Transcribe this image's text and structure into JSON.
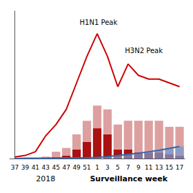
{
  "chart_data": {
    "type": "bar",
    "categories": [
      "37",
      "39",
      "41",
      "43",
      "45",
      "47",
      "49",
      "51",
      "1",
      "3",
      "5",
      "7",
      "9",
      "11",
      "13",
      "15",
      "17"
    ],
    "series": [
      {
        "type": "bar",
        "stacked": true,
        "color": "#aa1111",
        "values": [
          0,
          0,
          0,
          0,
          0.2,
          0.4,
          1.2,
          2.2,
          4.0,
          3.2,
          1.2,
          1.2,
          0.8,
          0.8,
          0.8,
          0.6,
          0.4
        ]
      },
      {
        "type": "bar",
        "stacked": true,
        "color": "#dda0a0",
        "values": [
          0,
          0.08,
          0.08,
          0.25,
          0.7,
          1.0,
          2.0,
          2.8,
          3.0,
          3.3,
          3.3,
          3.8,
          4.2,
          4.2,
          4.2,
          3.6,
          3.8
        ]
      },
      {
        "type": "bar",
        "color": "#7799cc",
        "values": [
          0,
          0.04,
          0.04,
          0.04,
          0.08,
          0.08,
          0.1,
          0.1,
          0.15,
          0.25,
          0.4,
          0.55,
          0.7,
          0.9,
          1.1,
          1.35,
          1.6
        ]
      },
      {
        "type": "line",
        "color": "#3366aa",
        "values": [
          0,
          0.04,
          0.04,
          0.04,
          0.08,
          0.08,
          0.1,
          0.1,
          0.15,
          0.25,
          0.4,
          0.55,
          0.7,
          0.9,
          1.1,
          1.35,
          1.6
        ]
      },
      {
        "type": "line",
        "color": "#cc0000",
        "values": [
          0.2,
          0.4,
          0.9,
          3.0,
          4.5,
          6.5,
          10.0,
          13.5,
          16.5,
          13.5,
          9.5,
          12.5,
          11.0,
          10.5,
          10.5,
          10.0,
          9.5
        ]
      }
    ],
    "ylim": [
      0,
      19.5
    ],
    "xlabel": "Surveillance week",
    "annotations": [
      {
        "text": "H1N1 Peak",
        "x": 6.3,
        "y": 17.5
      },
      {
        "text": "H3N2 Peak",
        "x": 10.7,
        "y": 13.8
      },
      {
        "text": "2018",
        "x": 3.0
      }
    ],
    "grid": false,
    "tick_labels": "x"
  }
}
